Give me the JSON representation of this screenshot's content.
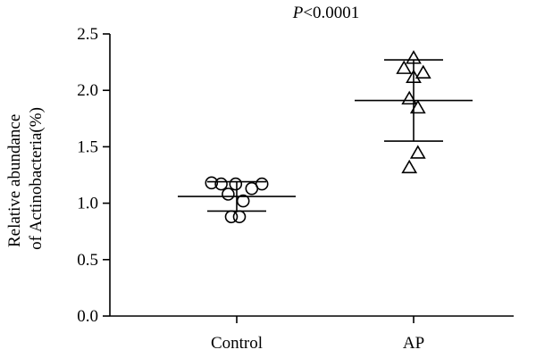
{
  "chart_data": {
    "type": "scatter",
    "annotation_prefix": "P",
    "annotation_suffix": "<0.0001",
    "ylabel_line1": "Relative abundance",
    "ylabel_line2": "of Actinobacteria(%)",
    "categories": [
      "Control",
      "AP"
    ],
    "ylim": [
      0,
      2.5
    ],
    "yticks": [
      "0.0",
      "0.5",
      "1.0",
      "1.5",
      "2.0",
      "2.5"
    ],
    "grid": false,
    "series": [
      {
        "marker": "circle",
        "mean": 1.06,
        "sd_upper": 1.19,
        "sd_lower": 0.93,
        "points": [
          {
            "offset": -0.47,
            "y": 1.18
          },
          {
            "offset": -0.29,
            "y": 1.17
          },
          {
            "offset": -0.16,
            "y": 1.08
          },
          {
            "offset": -0.02,
            "y": 1.17
          },
          {
            "offset": 0.12,
            "y": 1.02
          },
          {
            "offset": 0.28,
            "y": 1.13
          },
          {
            "offset": 0.47,
            "y": 1.17
          },
          {
            "offset": -0.1,
            "y": 0.88
          },
          {
            "offset": 0.05,
            "y": 0.88
          }
        ]
      },
      {
        "marker": "triangle",
        "mean": 1.91,
        "sd_upper": 2.27,
        "sd_lower": 1.55,
        "points": [
          {
            "offset": 0.0,
            "y": 2.28
          },
          {
            "offset": -0.18,
            "y": 2.19
          },
          {
            "offset": 0.0,
            "y": 2.11
          },
          {
            "offset": 0.18,
            "y": 2.15
          },
          {
            "offset": -0.08,
            "y": 1.92
          },
          {
            "offset": 0.08,
            "y": 1.84
          },
          {
            "offset": 0.08,
            "y": 1.44
          },
          {
            "offset": -0.08,
            "y": 1.31
          }
        ]
      }
    ]
  }
}
